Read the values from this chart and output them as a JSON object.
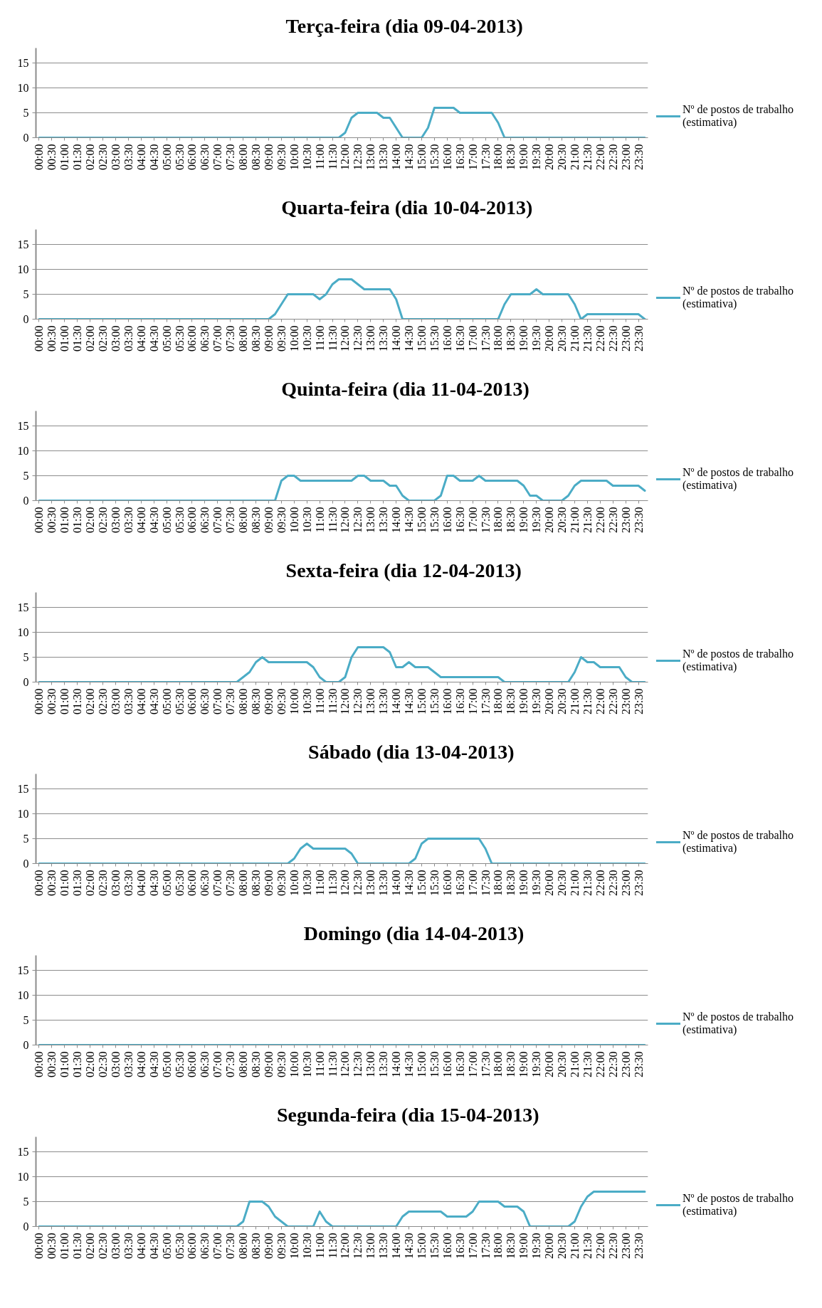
{
  "chart_data": [
    {
      "type": "line",
      "title": "Terça-feira (dia 09-04-2013)",
      "categories": [
        "00:00",
        null,
        "00:30",
        null,
        "01:00",
        null,
        "01:30",
        null,
        "02:00",
        null,
        "02:30",
        null,
        "03:00",
        null,
        "03:30",
        null,
        "04:00",
        null,
        "04:30",
        null,
        "05:00",
        null,
        "05:30",
        null,
        "06:00",
        null,
        "06:30",
        null,
        "07:00",
        null,
        "07:30",
        null,
        "08:00",
        null,
        "08:30",
        null,
        "09:00",
        null,
        "09:30",
        null,
        "10:00",
        null,
        "10:30",
        null,
        "11:00",
        null,
        "11:30",
        null,
        "12:00",
        null,
        "12:30",
        null,
        "13:00",
        null,
        "13:30",
        null,
        "14:00",
        null,
        "14:30",
        null,
        "15:00",
        null,
        "15:30",
        null,
        "16:00",
        null,
        "16:30",
        null,
        "17:00",
        null,
        "17:30",
        null,
        "18:00",
        null,
        "18:30",
        null,
        "19:00",
        null,
        "19:30",
        null,
        "20:00",
        null,
        "20:30",
        null,
        "21:00",
        null,
        "21:30",
        null,
        "22:00",
        null,
        "22:30",
        null,
        "23:00",
        null,
        "23:30",
        null
      ],
      "series": [
        {
          "name": "Nº de postos de trabalho (estimativa)",
          "color": "#4bacc6",
          "values": [
            0,
            0,
            0,
            0,
            0,
            0,
            0,
            0,
            0,
            0,
            0,
            0,
            0,
            0,
            0,
            0,
            0,
            0,
            0,
            0,
            0,
            0,
            0,
            0,
            0,
            0,
            0,
            0,
            0,
            0,
            0,
            0,
            0,
            0,
            0,
            0,
            0,
            0,
            0,
            0,
            0,
            0,
            0,
            0,
            0,
            0,
            0,
            0,
            1,
            4,
            5,
            5,
            5,
            5,
            4,
            4,
            2,
            0,
            0,
            0,
            0,
            2,
            6,
            6,
            6,
            6,
            5,
            5,
            5,
            5,
            5,
            5,
            3,
            0,
            0,
            0,
            0,
            0,
            0,
            0,
            0,
            0,
            0,
            0,
            0,
            0,
            0,
            0,
            0,
            0,
            0,
            0,
            0,
            0,
            0,
            0
          ]
        }
      ],
      "ylim": [
        0,
        18
      ],
      "yticks": [
        0,
        5,
        10,
        15
      ],
      "grid": "y",
      "legend": "right"
    },
    {
      "type": "line",
      "title": "Quarta-feira (dia 10-04-2013)",
      "categories": [
        "00:00",
        null,
        "00:30",
        null,
        "01:00",
        null,
        "01:30",
        null,
        "02:00",
        null,
        "02:30",
        null,
        "03:00",
        null,
        "03:30",
        null,
        "04:00",
        null,
        "04:30",
        null,
        "05:00",
        null,
        "05:30",
        null,
        "06:00",
        null,
        "06:30",
        null,
        "07:00",
        null,
        "07:30",
        null,
        "08:00",
        null,
        "08:30",
        null,
        "09:00",
        null,
        "09:30",
        null,
        "10:00",
        null,
        "10:30",
        null,
        "11:00",
        null,
        "11:30",
        null,
        "12:00",
        null,
        "12:30",
        null,
        "13:00",
        null,
        "13:30",
        null,
        "14:00",
        null,
        "14:30",
        null,
        "15:00",
        null,
        "15:30",
        null,
        "16:00",
        null,
        "16:30",
        null,
        "17:00",
        null,
        "17:30",
        null,
        "18:00",
        null,
        "18:30",
        null,
        "19:00",
        null,
        "19:30",
        null,
        "20:00",
        null,
        "20:30",
        null,
        "21:00",
        null,
        "21:30",
        null,
        "22:00",
        null,
        "22:30",
        null,
        "23:00",
        null,
        "23:30",
        null
      ],
      "series": [
        {
          "name": "Nº de postos de trabalho (estimativa)",
          "color": "#4bacc6",
          "values": [
            0,
            0,
            0,
            0,
            0,
            0,
            0,
            0,
            0,
            0,
            0,
            0,
            0,
            0,
            0,
            0,
            0,
            0,
            0,
            0,
            0,
            0,
            0,
            0,
            0,
            0,
            0,
            0,
            0,
            0,
            0,
            0,
            0,
            0,
            0,
            0,
            0,
            1,
            3,
            5,
            5,
            5,
            5,
            5,
            4,
            5,
            7,
            8,
            8,
            8,
            7,
            6,
            6,
            6,
            6,
            6,
            4,
            0,
            0,
            0,
            0,
            0,
            0,
            0,
            0,
            0,
            0,
            0,
            0,
            0,
            0,
            0,
            0,
            3,
            5,
            5,
            5,
            5,
            6,
            5,
            5,
            5,
            5,
            5,
            3,
            0,
            1,
            1,
            1,
            1,
            1,
            1,
            1,
            1,
            1,
            0
          ]
        }
      ],
      "ylim": [
        0,
        18
      ],
      "yticks": [
        0,
        5,
        10,
        15
      ],
      "grid": "y",
      "legend": "right"
    },
    {
      "type": "line",
      "title": "Quinta-feira (dia 11-04-2013)",
      "categories": [
        "00:00",
        null,
        "00:30",
        null,
        "01:00",
        null,
        "01:30",
        null,
        "02:00",
        null,
        "02:30",
        null,
        "03:00",
        null,
        "03:30",
        null,
        "04:00",
        null,
        "04:30",
        null,
        "05:00",
        null,
        "05:30",
        null,
        "06:00",
        null,
        "06:30",
        null,
        "07:00",
        null,
        "07:30",
        null,
        "08:00",
        null,
        "08:30",
        null,
        "09:00",
        null,
        "09:30",
        null,
        "10:00",
        null,
        "10:30",
        null,
        "11:00",
        null,
        "11:30",
        null,
        "12:00",
        null,
        "12:30",
        null,
        "13:00",
        null,
        "13:30",
        null,
        "14:00",
        null,
        "14:30",
        null,
        "15:00",
        null,
        "15:30",
        null,
        "16:00",
        null,
        "16:30",
        null,
        "17:00",
        null,
        "17:30",
        null,
        "18:00",
        null,
        "18:30",
        null,
        "19:00",
        null,
        "19:30",
        null,
        "20:00",
        null,
        "20:30",
        null,
        "21:00",
        null,
        "21:30",
        null,
        "22:00",
        null,
        "22:30",
        null,
        "23:00",
        null,
        "23:30",
        null
      ],
      "series": [
        {
          "name": "Nº de postos de trabalho (estimativa)",
          "color": "#4bacc6",
          "values": [
            0,
            0,
            0,
            0,
            0,
            0,
            0,
            0,
            0,
            0,
            0,
            0,
            0,
            0,
            0,
            0,
            0,
            0,
            0,
            0,
            0,
            0,
            0,
            0,
            0,
            0,
            0,
            0,
            0,
            0,
            0,
            0,
            0,
            0,
            0,
            0,
            0,
            0,
            4,
            5,
            5,
            4,
            4,
            4,
            4,
            4,
            4,
            4,
            4,
            4,
            5,
            5,
            4,
            4,
            4,
            3,
            3,
            1,
            0,
            0,
            0,
            0,
            0,
            1,
            5,
            5,
            4,
            4,
            4,
            5,
            4,
            4,
            4,
            4,
            4,
            4,
            3,
            1,
            1,
            0,
            0,
            0,
            0,
            1,
            3,
            4,
            4,
            4,
            4,
            4,
            3,
            3,
            3,
            3,
            3,
            2
          ]
        }
      ],
      "ylim": [
        0,
        18
      ],
      "yticks": [
        0,
        5,
        10,
        15
      ],
      "grid": "y",
      "legend": "right"
    },
    {
      "type": "line",
      "title": "Sexta-feira (dia 12-04-2013)",
      "categories": [
        "00:00",
        null,
        "00:30",
        null,
        "01:00",
        null,
        "01:30",
        null,
        "02:00",
        null,
        "02:30",
        null,
        "03:00",
        null,
        "03:30",
        null,
        "04:00",
        null,
        "04:30",
        null,
        "05:00",
        null,
        "05:30",
        null,
        "06:00",
        null,
        "06:30",
        null,
        "07:00",
        null,
        "07:30",
        null,
        "08:00",
        null,
        "08:30",
        null,
        "09:00",
        null,
        "09:30",
        null,
        "10:00",
        null,
        "10:30",
        null,
        "11:00",
        null,
        "11:30",
        null,
        "12:00",
        null,
        "12:30",
        null,
        "13:00",
        null,
        "13:30",
        null,
        "14:00",
        null,
        "14:30",
        null,
        "15:00",
        null,
        "15:30",
        null,
        "16:00",
        null,
        "16:30",
        null,
        "17:00",
        null,
        "17:30",
        null,
        "18:00",
        null,
        "18:30",
        null,
        "19:00",
        null,
        "19:30",
        null,
        "20:00",
        null,
        "20:30",
        null,
        "21:00",
        null,
        "21:30",
        null,
        "22:00",
        null,
        "22:30",
        null,
        "23:00",
        null,
        "23:30",
        null
      ],
      "series": [
        {
          "name": "Nº de postos de trabalho (estimativa)",
          "color": "#4bacc6",
          "values": [
            0,
            0,
            0,
            0,
            0,
            0,
            0,
            0,
            0,
            0,
            0,
            0,
            0,
            0,
            0,
            0,
            0,
            0,
            0,
            0,
            0,
            0,
            0,
            0,
            0,
            0,
            0,
            0,
            0,
            0,
            0,
            0,
            1,
            2,
            4,
            5,
            4,
            4,
            4,
            4,
            4,
            4,
            4,
            3,
            1,
            0,
            0,
            0,
            1,
            5,
            7,
            7,
            7,
            7,
            7,
            6,
            3,
            3,
            4,
            3,
            3,
            3,
            2,
            1,
            1,
            1,
            1,
            1,
            1,
            1,
            1,
            1,
            1,
            0,
            0,
            0,
            0,
            0,
            0,
            0,
            0,
            0,
            0,
            0,
            2,
            5,
            4,
            4,
            3,
            3,
            3,
            3,
            1,
            0,
            0,
            0
          ]
        }
      ],
      "ylim": [
        0,
        18
      ],
      "yticks": [
        0,
        5,
        10,
        15
      ],
      "grid": "y",
      "legend": "right"
    },
    {
      "type": "line",
      "title": "Sábado (dia 13-04-2013)",
      "categories": [
        "00:00",
        null,
        "00:30",
        null,
        "01:00",
        null,
        "01:30",
        null,
        "02:00",
        null,
        "02:30",
        null,
        "03:00",
        null,
        "03:30",
        null,
        "04:00",
        null,
        "04:30",
        null,
        "05:00",
        null,
        "05:30",
        null,
        "06:00",
        null,
        "06:30",
        null,
        "07:00",
        null,
        "07:30",
        null,
        "08:00",
        null,
        "08:30",
        null,
        "09:00",
        null,
        "09:30",
        null,
        "10:00",
        null,
        "10:30",
        null,
        "11:00",
        null,
        "11:30",
        null,
        "12:00",
        null,
        "12:30",
        null,
        "13:00",
        null,
        "13:30",
        null,
        "14:00",
        null,
        "14:30",
        null,
        "15:00",
        null,
        "15:30",
        null,
        "16:00",
        null,
        "16:30",
        null,
        "17:00",
        null,
        "17:30",
        null,
        "18:00",
        null,
        "18:30",
        null,
        "19:00",
        null,
        "19:30",
        null,
        "20:00",
        null,
        "20:30",
        null,
        "21:00",
        null,
        "21:30",
        null,
        "22:00",
        null,
        "22:30",
        null,
        "23:00",
        null,
        "23:30",
        null
      ],
      "series": [
        {
          "name": "Nº de postos de trabalho (estimativa)",
          "color": "#4bacc6",
          "values": [
            0,
            0,
            0,
            0,
            0,
            0,
            0,
            0,
            0,
            0,
            0,
            0,
            0,
            0,
            0,
            0,
            0,
            0,
            0,
            0,
            0,
            0,
            0,
            0,
            0,
            0,
            0,
            0,
            0,
            0,
            0,
            0,
            0,
            0,
            0,
            0,
            0,
            0,
            0,
            0,
            1,
            3,
            4,
            3,
            3,
            3,
            3,
            3,
            3,
            2,
            0,
            0,
            0,
            0,
            0,
            0,
            0,
            0,
            0,
            1,
            4,
            5,
            5,
            5,
            5,
            5,
            5,
            5,
            5,
            5,
            3,
            0,
            0,
            0,
            0,
            0,
            0,
            0,
            0,
            0,
            0,
            0,
            0,
            0,
            0,
            0,
            0,
            0,
            0,
            0,
            0,
            0,
            0,
            0,
            0,
            0
          ]
        }
      ],
      "ylim": [
        0,
        18
      ],
      "yticks": [
        0,
        5,
        10,
        15
      ],
      "grid": "y",
      "legend": "right"
    },
    {
      "type": "line",
      "title": "Domingo (dia 14-04-2013)",
      "categories": [
        "00:00",
        null,
        "00:30",
        null,
        "01:00",
        null,
        "01:30",
        null,
        "02:00",
        null,
        "02:30",
        null,
        "03:00",
        null,
        "03:30",
        null,
        "04:00",
        null,
        "04:30",
        null,
        "05:00",
        null,
        "05:30",
        null,
        "06:00",
        null,
        "06:30",
        null,
        "07:00",
        null,
        "07:30",
        null,
        "08:00",
        null,
        "08:30",
        null,
        "09:00",
        null,
        "09:30",
        null,
        "10:00",
        null,
        "10:30",
        null,
        "11:00",
        null,
        "11:30",
        null,
        "12:00",
        null,
        "12:30",
        null,
        "13:00",
        null,
        "13:30",
        null,
        "14:00",
        null,
        "14:30",
        null,
        "15:00",
        null,
        "15:30",
        null,
        "16:00",
        null,
        "16:30",
        null,
        "17:00",
        null,
        "17:30",
        null,
        "18:00",
        null,
        "18:30",
        null,
        "19:00",
        null,
        "19:30",
        null,
        "20:00",
        null,
        "20:30",
        null,
        "21:00",
        null,
        "21:30",
        null,
        "22:00",
        null,
        "22:30",
        null,
        "23:00",
        null,
        "23:30",
        null
      ],
      "series": [
        {
          "name": "Nº de postos de trabalho (estimativa)",
          "color": "#4bacc6",
          "values": [
            0,
            0,
            0,
            0,
            0,
            0,
            0,
            0,
            0,
            0,
            0,
            0,
            0,
            0,
            0,
            0,
            0,
            0,
            0,
            0,
            0,
            0,
            0,
            0,
            0,
            0,
            0,
            0,
            0,
            0,
            0,
            0,
            0,
            0,
            0,
            0,
            0,
            0,
            0,
            0,
            0,
            0,
            0,
            0,
            0,
            0,
            0,
            0,
            0,
            0,
            0,
            0,
            0,
            0,
            0,
            0,
            0,
            0,
            0,
            0,
            0,
            0,
            0,
            0,
            0,
            0,
            0,
            0,
            0,
            0,
            0,
            0,
            0,
            0,
            0,
            0,
            0,
            0,
            0,
            0,
            0,
            0,
            0,
            0,
            0,
            0,
            0,
            0,
            0,
            0,
            0,
            0,
            0,
            0,
            0,
            0
          ]
        }
      ],
      "ylim": [
        0,
        18
      ],
      "yticks": [
        0,
        5,
        10,
        15
      ],
      "grid": "y",
      "legend": "right"
    },
    {
      "type": "line",
      "title": "Segunda-feira (dia 15-04-2013)",
      "categories": [
        "00:00",
        null,
        "00:30",
        null,
        "01:00",
        null,
        "01:30",
        null,
        "02:00",
        null,
        "02:30",
        null,
        "03:00",
        null,
        "03:30",
        null,
        "04:00",
        null,
        "04:30",
        null,
        "05:00",
        null,
        "05:30",
        null,
        "06:00",
        null,
        "06:30",
        null,
        "07:00",
        null,
        "07:30",
        null,
        "08:00",
        null,
        "08:30",
        null,
        "09:00",
        null,
        "09:30",
        null,
        "10:00",
        null,
        "10:30",
        null,
        "11:00",
        null,
        "11:30",
        null,
        "12:00",
        null,
        "12:30",
        null,
        "13:00",
        null,
        "13:30",
        null,
        "14:00",
        null,
        "14:30",
        null,
        "15:00",
        null,
        "15:30",
        null,
        "16:00",
        null,
        "16:30",
        null,
        "17:00",
        null,
        "17:30",
        null,
        "18:00",
        null,
        "18:30",
        null,
        "19:00",
        null,
        "19:30",
        null,
        "20:00",
        null,
        "20:30",
        null,
        "21:00",
        null,
        "21:30",
        null,
        "22:00",
        null,
        "22:30",
        null,
        "23:00",
        null,
        "23:30",
        null
      ],
      "series": [
        {
          "name": "Nº de postos de trabalho (estimativa)",
          "color": "#4bacc6",
          "values": [
            0,
            0,
            0,
            0,
            0,
            0,
            0,
            0,
            0,
            0,
            0,
            0,
            0,
            0,
            0,
            0,
            0,
            0,
            0,
            0,
            0,
            0,
            0,
            0,
            0,
            0,
            0,
            0,
            0,
            0,
            0,
            0,
            1,
            5,
            5,
            5,
            4,
            2,
            1,
            0,
            0,
            0,
            0,
            0,
            3,
            1,
            0,
            0,
            0,
            0,
            0,
            0,
            0,
            0,
            0,
            0,
            0,
            2,
            3,
            3,
            3,
            3,
            3,
            3,
            2,
            2,
            2,
            2,
            3,
            5,
            5,
            5,
            5,
            4,
            4,
            4,
            3,
            0,
            0,
            0,
            0,
            0,
            0,
            0,
            1,
            4,
            6,
            7,
            7,
            7,
            7,
            7,
            7,
            7,
            7,
            7
          ]
        }
      ],
      "ylim": [
        0,
        18
      ],
      "yticks": [
        0,
        5,
        10,
        15
      ],
      "grid": "y",
      "legend": "right"
    }
  ]
}
